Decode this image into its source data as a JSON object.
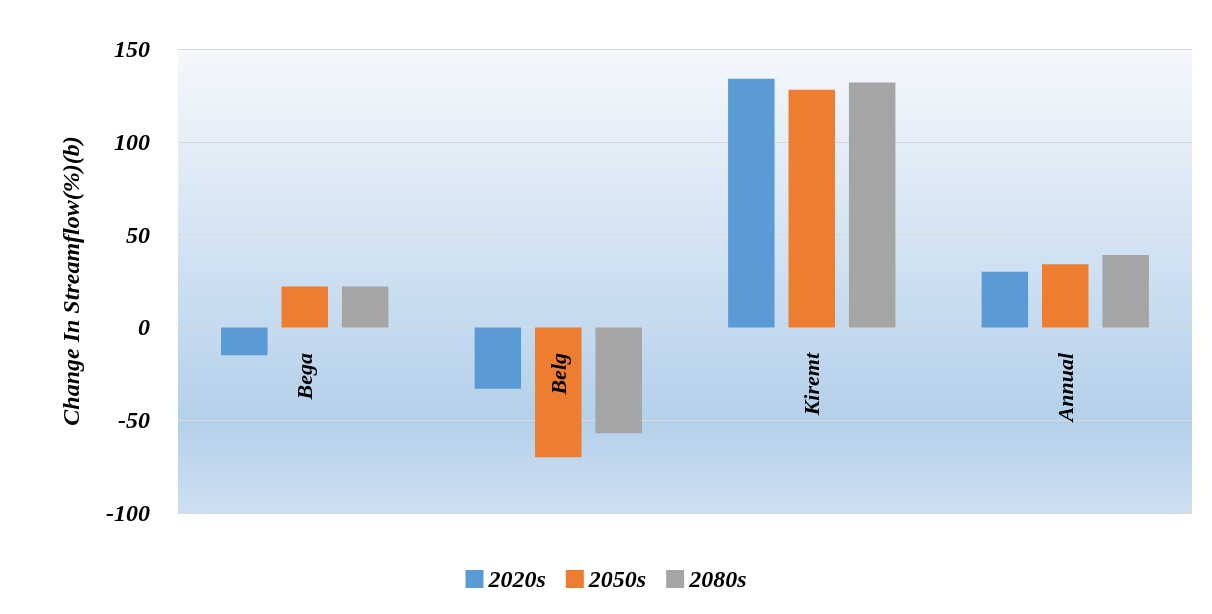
{
  "chart_data": {
    "type": "bar",
    "ylabel": "Change In Streamflow(%)(b)",
    "categories": [
      "Bega",
      "Belg",
      "Kiremt",
      "Annual"
    ],
    "series": [
      {
        "name": "2020s",
        "color": "#5b9bd5",
        "values": [
          -15,
          -33,
          134,
          30
        ]
      },
      {
        "name": "2050s",
        "color": "#ed7d31",
        "values": [
          22,
          -70,
          128,
          34
        ]
      },
      {
        "name": "2080s",
        "color": "#a5a5a5",
        "values": [
          22,
          -57,
          132,
          39
        ]
      }
    ],
    "ylim": [
      -100,
      150
    ],
    "yticks": [
      -100,
      -50,
      0,
      50,
      100,
      150
    ],
    "grid": "y",
    "legend": "bottom"
  }
}
